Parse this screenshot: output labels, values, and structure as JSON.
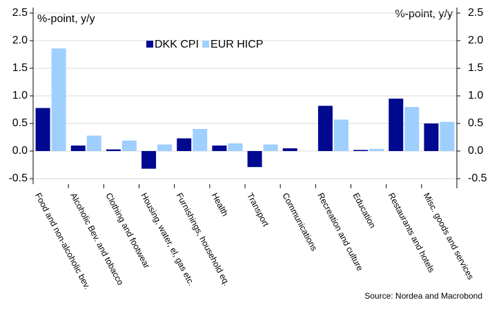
{
  "chart_data": {
    "type": "bar",
    "ylabel": "%-point, y/y",
    "y2label": "%-point, y/y",
    "categories": [
      "Food and non-alcoholic bev.",
      "Alcoholic Bev. and tobacco",
      "Clothing and footwear",
      "Housing, water, el, gas etc.",
      "Furnishings, household eq.",
      "Health",
      "Transport",
      "Communications",
      "Recreation and culture",
      "Education",
      "Restaurants and hotels",
      "Misc. goods and services"
    ],
    "series": [
      {
        "name": "DKK CPI",
        "color": "#00098f",
        "values": [
          0.78,
          0.1,
          0.03,
          -0.32,
          0.23,
          0.1,
          -0.29,
          0.05,
          0.82,
          0.02,
          0.95,
          0.5
        ]
      },
      {
        "name": "EUR HICP",
        "color": "#9ecfff",
        "values": [
          1.86,
          0.28,
          0.19,
          0.12,
          0.4,
          0.14,
          0.12,
          0.0,
          0.57,
          0.04,
          0.8,
          0.53
        ]
      }
    ],
    "ylim": [
      -0.6,
      2.6
    ],
    "yticks": [
      2.5,
      {
        "value": 2,
        "label": "2.0"
      },
      1.5,
      {
        "value": 1,
        "label": "1.0"
      },
      0.5,
      {
        "value": 0,
        "label": "0.0"
      },
      -0.5
    ],
    "y2lim": [
      -0.6,
      2.6
    ],
    "y2ticks": [
      2.5,
      {
        "value": 2,
        "label": "2.0"
      },
      1.5,
      {
        "value": 1,
        "label": "1.0"
      },
      0.5,
      {
        "value": 0,
        "label": "0.0"
      },
      -0.5
    ],
    "grid": true,
    "legend": "top",
    "source": "Source: Nordea and Macrobond"
  }
}
